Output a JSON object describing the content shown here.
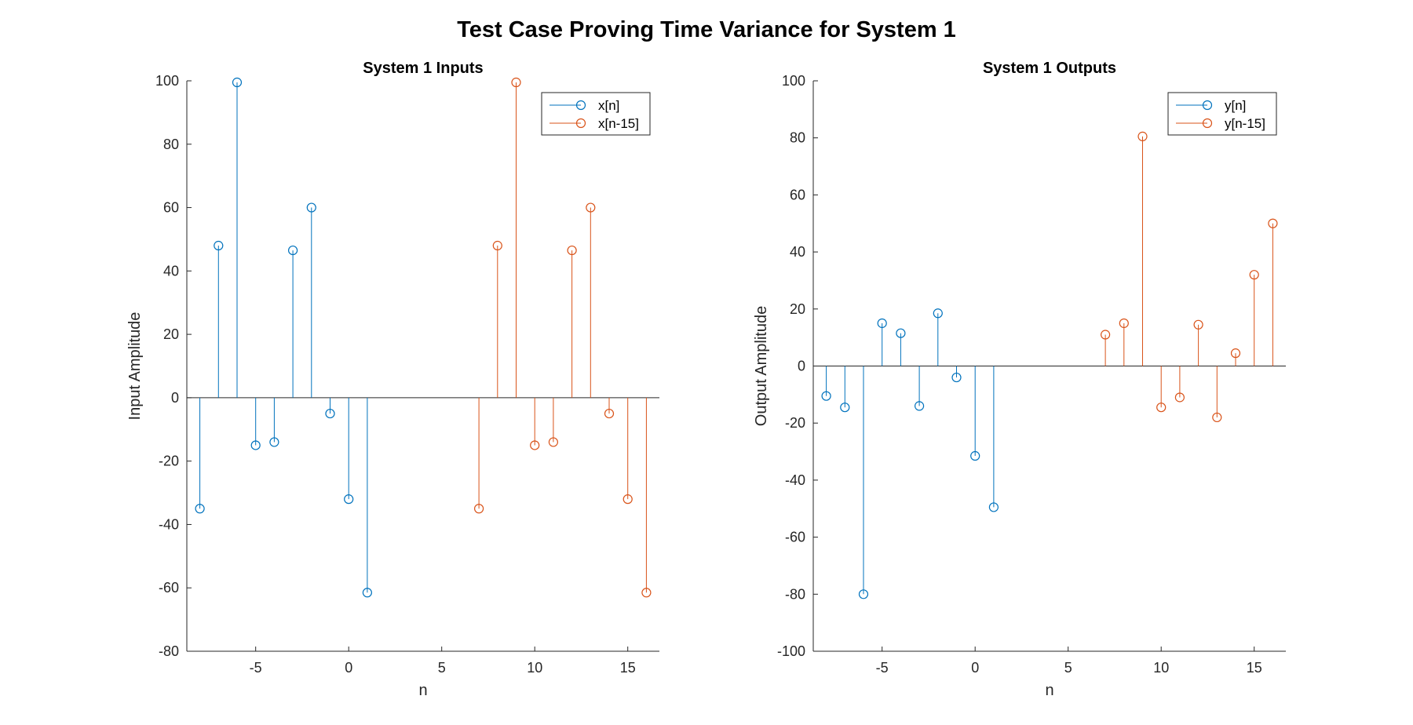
{
  "figure": {
    "title": "Test Case Proving Time Variance for System 1"
  },
  "chart_data": [
    {
      "type": "stem",
      "title": "System 1 Inputs",
      "xlabel": "n",
      "ylabel": "Input Amplitude",
      "xlim": [
        -8.7,
        16.7
      ],
      "ylim": [
        -80,
        100
      ],
      "xticks": [
        -5,
        0,
        5,
        10,
        15
      ],
      "yticks": [
        -80,
        -60,
        -40,
        -20,
        0,
        20,
        40,
        60,
        80,
        100
      ],
      "grid": false,
      "legend_position": "top-right",
      "series": [
        {
          "name": "x[n]",
          "color": "#0072BD",
          "x": [
            -8,
            -7,
            -6,
            -5,
            -4,
            -3,
            -2,
            -1,
            0,
            1
          ],
          "values": [
            -35,
            48,
            99.5,
            -15,
            -14,
            46.5,
            60,
            -5,
            -32,
            -61.5
          ]
        },
        {
          "name": "x[n-15]",
          "color": "#D95319",
          "x": [
            7,
            8,
            9,
            10,
            11,
            12,
            13,
            14,
            15,
            16
          ],
          "values": [
            -35,
            48,
            99.5,
            -15,
            -14,
            46.5,
            60,
            -5,
            -32,
            -61.5
          ]
        }
      ]
    },
    {
      "type": "stem",
      "title": "System 1 Outputs",
      "xlabel": "n",
      "ylabel": "Output Amplitude",
      "xlim": [
        -8.7,
        16.7
      ],
      "ylim": [
        -100,
        100
      ],
      "xticks": [
        -5,
        0,
        5,
        10,
        15
      ],
      "yticks": [
        -100,
        -80,
        -60,
        -40,
        -20,
        0,
        20,
        40,
        60,
        80,
        100
      ],
      "grid": false,
      "legend_position": "top-right",
      "series": [
        {
          "name": "y[n]",
          "color": "#0072BD",
          "x": [
            -8,
            -7,
            -6,
            -5,
            -4,
            -3,
            -2,
            -1,
            0,
            1
          ],
          "values": [
            -10.5,
            -14.5,
            -80,
            15,
            11.5,
            -14,
            18.5,
            -4,
            -31.5,
            -49.5
          ]
        },
        {
          "name": "y[n-15]",
          "color": "#D95319",
          "x": [
            7,
            8,
            9,
            10,
            11,
            12,
            13,
            14,
            15,
            16
          ],
          "values": [
            11,
            15,
            80.5,
            -14.5,
            -11,
            14.5,
            -18,
            4.5,
            32,
            50
          ]
        }
      ]
    }
  ]
}
